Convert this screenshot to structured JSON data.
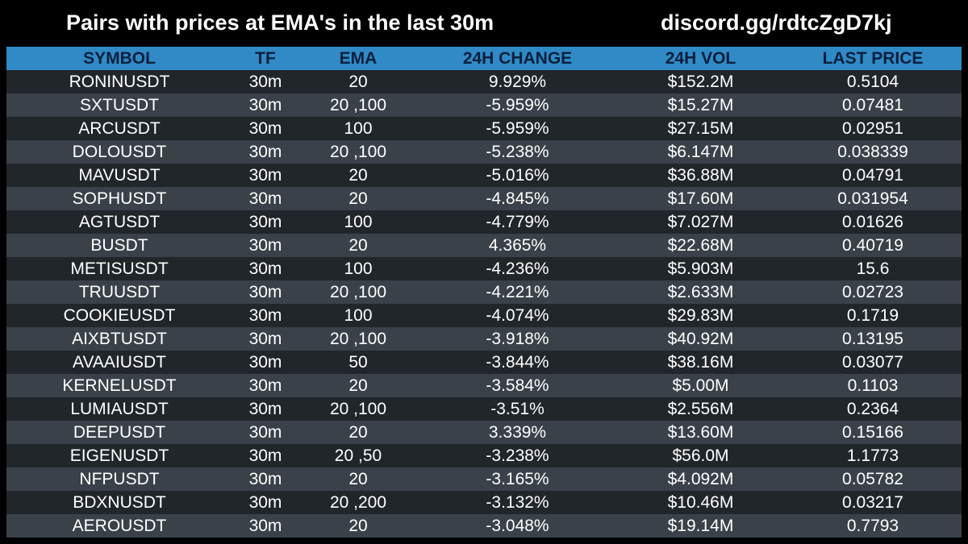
{
  "header": {
    "title": "Pairs with prices at EMA's in the last 30m",
    "discord": "discord.gg/rdtcZgD7kj"
  },
  "chart_data": {
    "type": "table",
    "columns": [
      "SYMBOL",
      "TF",
      "EMA",
      "24H CHANGE",
      "24H VOL",
      "LAST PRICE"
    ],
    "rows": [
      [
        "RONINUSDT",
        "30m",
        "20",
        "9.929%",
        "$152.2M",
        "0.5104"
      ],
      [
        "SXTUSDT",
        "30m",
        "20 ,100",
        "-5.959%",
        "$15.27M",
        "0.07481"
      ],
      [
        "ARCUSDT",
        "30m",
        "100",
        "-5.959%",
        "$27.15M",
        "0.02951"
      ],
      [
        "DOLOUSDT",
        "30m",
        "20 ,100",
        "-5.238%",
        "$6.147M",
        "0.038339"
      ],
      [
        "MAVUSDT",
        "30m",
        "20",
        "-5.016%",
        "$36.88M",
        "0.04791"
      ],
      [
        "SOPHUSDT",
        "30m",
        "20",
        "-4.845%",
        "$17.60M",
        "0.031954"
      ],
      [
        "AGTUSDT",
        "30m",
        "100",
        "-4.779%",
        "$7.027M",
        "0.01626"
      ],
      [
        "BUSDT",
        "30m",
        "20",
        "4.365%",
        "$22.68M",
        "0.40719"
      ],
      [
        "METISUSDT",
        "30m",
        "100",
        "-4.236%",
        "$5.903M",
        "15.6"
      ],
      [
        "TRUUSDT",
        "30m",
        "20 ,100",
        "-4.221%",
        "$2.633M",
        "0.02723"
      ],
      [
        "COOKIEUSDT",
        "30m",
        "100",
        "-4.074%",
        "$29.83M",
        "0.1719"
      ],
      [
        "AIXBTUSDT",
        "30m",
        "20 ,100",
        "-3.918%",
        "$40.92M",
        "0.13195"
      ],
      [
        "AVAAIUSDT",
        "30m",
        "50",
        "-3.844%",
        "$38.16M",
        "0.03077"
      ],
      [
        "KERNELUSDT",
        "30m",
        "20",
        "-3.584%",
        "$5.00M",
        "0.1103"
      ],
      [
        "LUMIAUSDT",
        "30m",
        "20 ,100",
        "-3.51%",
        "$2.556M",
        "0.2364"
      ],
      [
        "DEEPUSDT",
        "30m",
        "20",
        "3.339%",
        "$13.60M",
        "0.15166"
      ],
      [
        "EIGENUSDT",
        "30m",
        "20 ,50",
        "-3.238%",
        "$56.0M",
        "1.1773"
      ],
      [
        "NFPUSDT",
        "30m",
        "20",
        "-3.165%",
        "$4.092M",
        "0.05782"
      ],
      [
        "BDXNUSDT",
        "30m",
        "20 ,200",
        "-3.132%",
        "$10.46M",
        "0.03217"
      ],
      [
        "AEROUSDT",
        "30m",
        "20",
        "-3.048%",
        "$19.14M",
        "0.7793"
      ]
    ]
  },
  "colors": {
    "background": "#000000",
    "header_row": "#2f8ac6",
    "header_text": "#0b1f3d",
    "row_dark": "#21262b",
    "row_light": "#3a4148",
    "text": "#ffffff"
  }
}
